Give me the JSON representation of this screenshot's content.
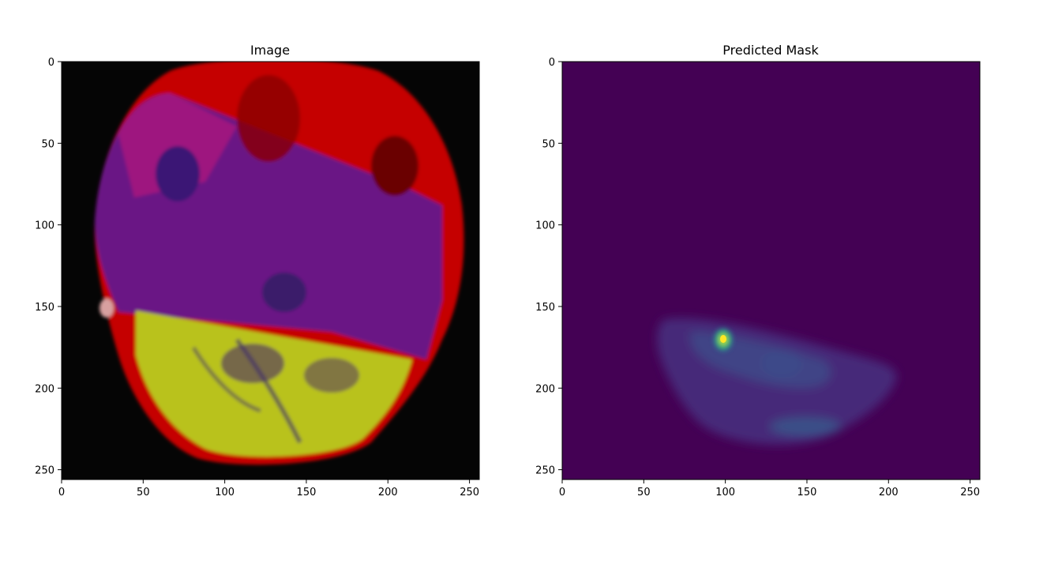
{
  "chart_data": [
    {
      "type": "heatmap",
      "title": "Image",
      "xlim": [
        0,
        256
      ],
      "ylim": [
        256,
        0
      ],
      "x_ticks": [
        0,
        50,
        100,
        150,
        200,
        250
      ],
      "y_ticks": [
        0,
        50,
        100,
        150,
        200,
        250
      ],
      "grid": false,
      "content": "RGB axial MRI slice",
      "colors": {
        "region_red": "#c80000",
        "region_purple": "#5a1aa8",
        "region_yellow": "#b8c214",
        "background": "#050505"
      }
    },
    {
      "type": "heatmap",
      "title": "Predicted Mask",
      "xlim": [
        0,
        256
      ],
      "ylim": [
        256,
        0
      ],
      "x_ticks": [
        0,
        50,
        100,
        150,
        200,
        250
      ],
      "y_ticks": [
        0,
        50,
        100,
        150,
        200,
        250
      ],
      "grid": false,
      "colormap": "viridis",
      "hotspot": {
        "x": 100,
        "y": 170
      },
      "colors": {
        "background": "#440154",
        "mid": "#3b528b",
        "high": "#21918c",
        "peak": "#fde725"
      }
    }
  ]
}
